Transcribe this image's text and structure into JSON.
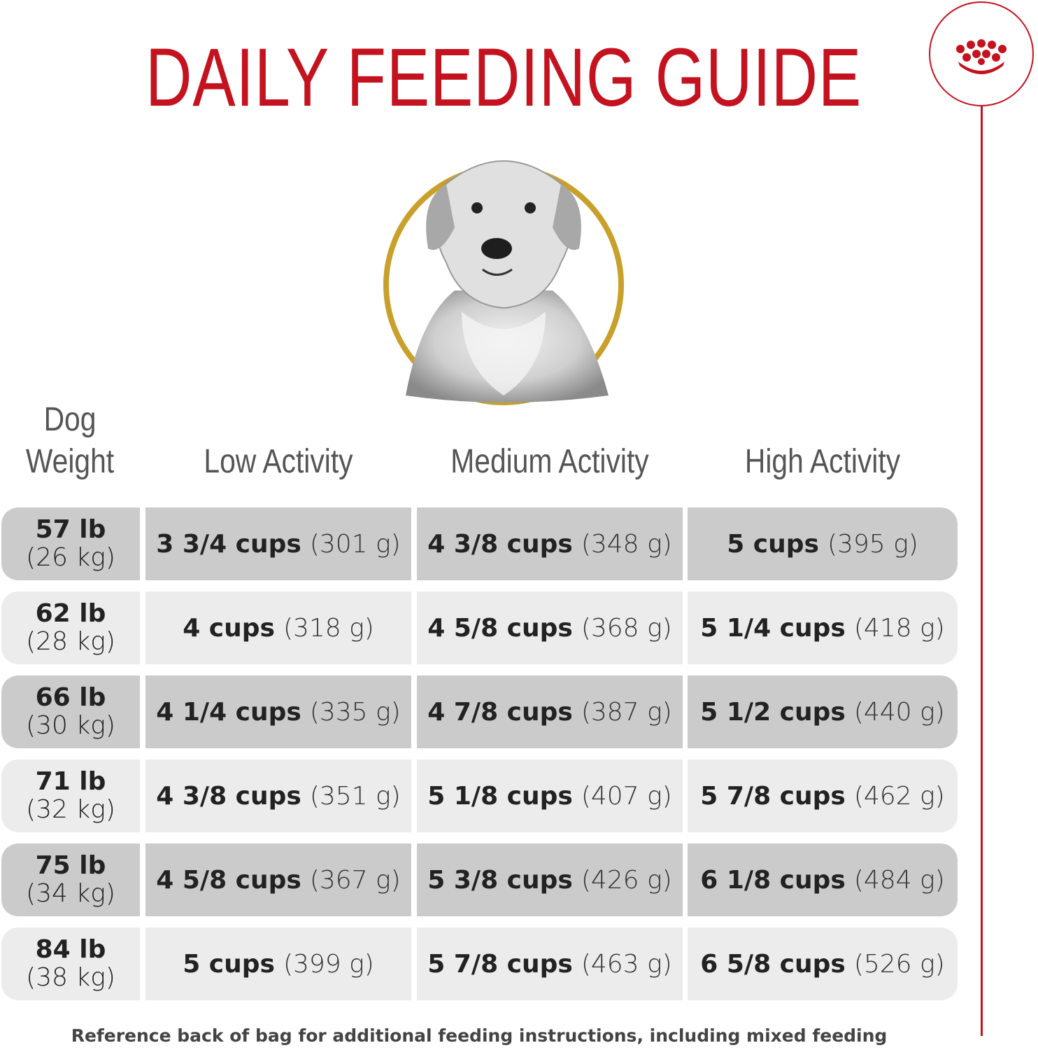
{
  "title": "DAILY FEEDING GUIDE",
  "colors": {
    "brand_red": "#c4121f",
    "gold_ring": "#c8a02a",
    "row_dark": "#cbcbcb",
    "row_light": "#ececec"
  },
  "header": {
    "weight_line1": "Dog",
    "weight_line2": "Weight",
    "low": "Low Activity",
    "medium": "Medium Activity",
    "high": "High Activity"
  },
  "rows": [
    {
      "lb": "57 lb",
      "kg": "(26 kg)",
      "low_cups": "3 3/4 cups",
      "low_g": "(301 g)",
      "med_cups": "4 3/8 cups",
      "med_g": "(348 g)",
      "high_cups": "5 cups",
      "high_g": "(395 g)"
    },
    {
      "lb": "62 lb",
      "kg": "(28 kg)",
      "low_cups": "4 cups",
      "low_g": "(318 g)",
      "med_cups": "4 5/8 cups",
      "med_g": "(368 g)",
      "high_cups": "5 1/4 cups",
      "high_g": "(418 g)"
    },
    {
      "lb": "66 lb",
      "kg": "(30 kg)",
      "low_cups": "4 1/4 cups",
      "low_g": "(335 g)",
      "med_cups": "4 7/8 cups",
      "med_g": "(387 g)",
      "high_cups": "5 1/2 cups",
      "high_g": "(440 g)"
    },
    {
      "lb": "71 lb",
      "kg": "(32 kg)",
      "low_cups": "4 3/8 cups",
      "low_g": "(351 g)",
      "med_cups": "5 1/8 cups",
      "med_g": "(407 g)",
      "high_cups": "5 7/8 cups",
      "high_g": "(462 g)"
    },
    {
      "lb": "75 lb",
      "kg": "(34 kg)",
      "low_cups": "4 5/8 cups",
      "low_g": "(367 g)",
      "med_cups": "5 3/8 cups",
      "med_g": "(426 g)",
      "high_cups": "6 1/8 cups",
      "high_g": "(484 g)"
    },
    {
      "lb": "84 lb",
      "kg": "(38 kg)",
      "low_cups": "5 cups",
      "low_g": "(399 g)",
      "med_cups": "5 7/8 cups",
      "med_g": "(463 g)",
      "high_cups": "6 5/8 cups",
      "high_g": "(526 g)"
    }
  ],
  "footnote": "Reference back of bag for additional feeding instructions, including mixed feeding",
  "icons": {
    "brand": "crown-icon",
    "portrait": "dog-portrait"
  }
}
